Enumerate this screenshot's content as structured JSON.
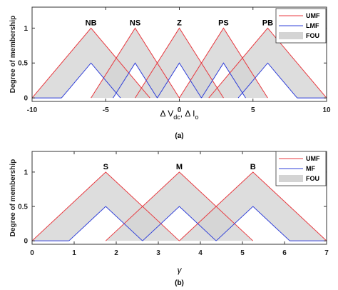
{
  "chart_data": [
    {
      "type": "line",
      "ylabel": "Degree of membership",
      "xlabel": {
        "main": "Δ V",
        "sub1": "dc",
        "mid": ", Δ I",
        "sub2": "o"
      },
      "caption": "(a)",
      "xlim": [
        -10,
        10
      ],
      "ylim": [
        -0.05,
        1.3
      ],
      "xticks": [
        -10,
        -5,
        0,
        5,
        10
      ],
      "xtick_labels": [
        "-10",
        "-5",
        "0",
        "5",
        "10"
      ],
      "yticks": [
        0,
        0.5,
        1
      ],
      "ytick_labels": [
        "0",
        "0.5",
        "1"
      ],
      "grid": false,
      "legend": {
        "position": "top-right",
        "entries": [
          "UMF",
          "LMF",
          "FOU"
        ]
      },
      "colors": {
        "umf": "#e8393f",
        "lmf": "#2f3fd9",
        "fou": "#d4d4d4"
      },
      "sets": [
        {
          "label": "NB",
          "center": -6,
          "umf_half_width": 4,
          "lmf_half_width": 2,
          "lmf_height": 0.5,
          "label_x": -6
        },
        {
          "label": "NS",
          "center": -3,
          "umf_half_width": 3,
          "lmf_half_width": 1.5,
          "lmf_height": 0.5,
          "label_x": -3
        },
        {
          "label": "Z",
          "center": 0,
          "umf_half_width": 3,
          "lmf_half_width": 1.5,
          "lmf_height": 0.5,
          "label_x": 0
        },
        {
          "label": "PS",
          "center": 3,
          "umf_half_width": 3,
          "lmf_half_width": 1.5,
          "lmf_height": 0.5,
          "label_x": 3
        },
        {
          "label": "PB",
          "center": 6,
          "umf_half_width": 4,
          "lmf_half_width": 2,
          "lmf_height": 0.5,
          "label_x": 6
        }
      ],
      "extra_lines": [
        {
          "x1": -10,
          "x2": -8,
          "y": 0,
          "kind": "lmf"
        },
        {
          "x1": 8,
          "x2": 10,
          "y": 0,
          "kind": "lmf"
        },
        {
          "x1": -10,
          "x2": -10,
          "y": 0,
          "kind": "umf"
        }
      ]
    },
    {
      "type": "line",
      "ylabel": "Degree of membership",
      "xlabel": {
        "main": "γ"
      },
      "caption": "(b)",
      "xlim": [
        0,
        7
      ],
      "ylim": [
        -0.05,
        1.3
      ],
      "xticks": [
        0,
        1,
        2,
        3,
        4,
        5,
        6,
        7
      ],
      "xtick_labels": [
        "0",
        "1",
        "2",
        "3",
        "4",
        "5",
        "6",
        "7"
      ],
      "yticks": [
        0,
        0.5,
        1
      ],
      "ytick_labels": [
        "0",
        "0.5",
        "1"
      ],
      "grid": false,
      "legend": {
        "position": "top-right",
        "entries": [
          "UMF",
          "MF",
          "FOU"
        ]
      },
      "colors": {
        "umf": "#e8393f",
        "lmf": "#2f3fd9",
        "fou": "#d4d4d4"
      },
      "sets": [
        {
          "label": "S",
          "center": 1.75,
          "umf_half_width": 1.75,
          "lmf_half_width": 0.875,
          "lmf_height": 0.5,
          "label_x": 1.75
        },
        {
          "label": "M",
          "center": 3.5,
          "umf_half_width": 1.75,
          "lmf_half_width": 0.875,
          "lmf_height": 0.5,
          "label_x": 3.5
        },
        {
          "label": "B",
          "center": 5.25,
          "umf_half_width": 1.75,
          "lmf_half_width": 0.875,
          "lmf_height": 0.5,
          "label_x": 5.25
        }
      ],
      "extra_lines": [
        {
          "x1": 0,
          "x2": 0.875,
          "y": 0,
          "kind": "lmf"
        },
        {
          "x1": 6.125,
          "x2": 7,
          "y": 0,
          "kind": "lmf"
        }
      ]
    }
  ]
}
